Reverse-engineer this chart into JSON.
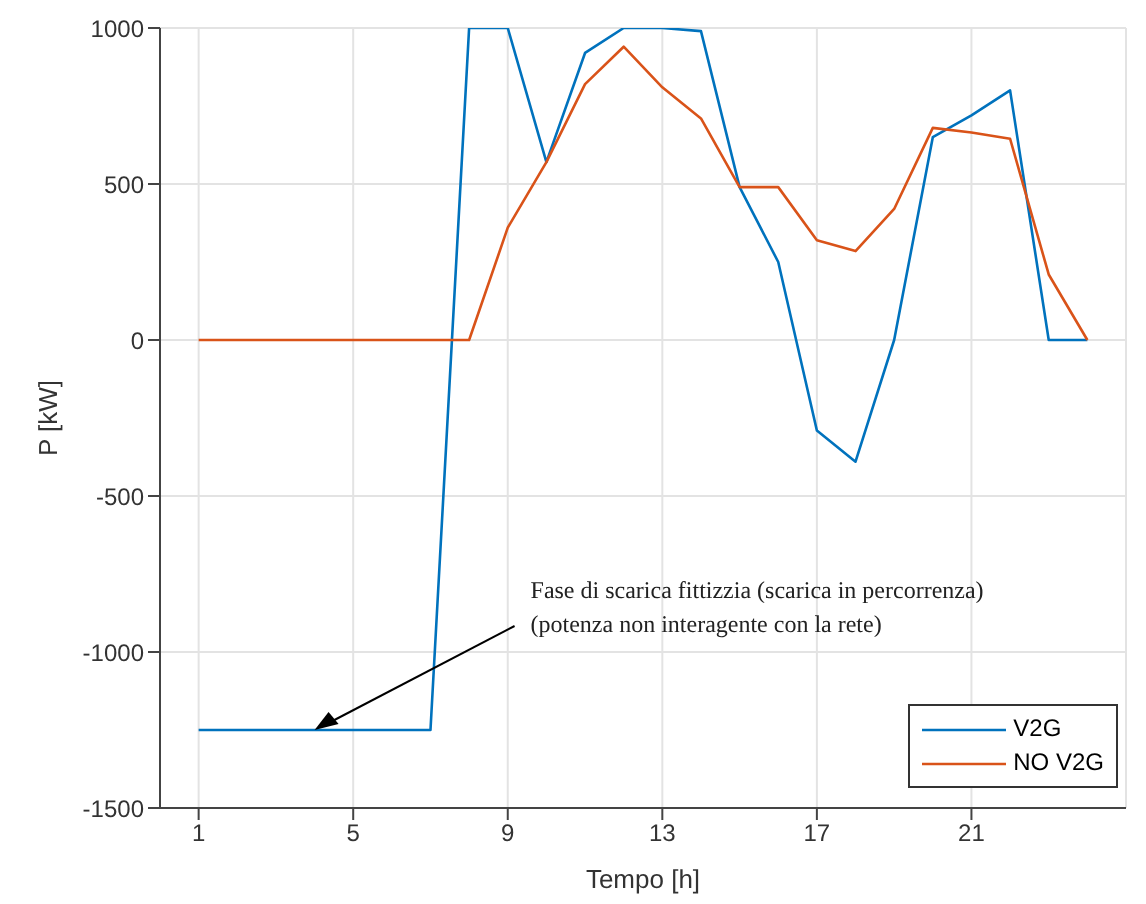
{
  "chart_data": {
    "type": "line",
    "xlabel": "Tempo [h]",
    "ylabel": "P [kW]",
    "x": [
      1,
      2,
      3,
      4,
      5,
      6,
      7,
      8,
      9,
      10,
      11,
      12,
      13,
      14,
      15,
      16,
      17,
      18,
      19,
      20,
      21,
      22,
      23,
      24
    ],
    "series": [
      {
        "name": "V2G",
        "color": "#0072bd",
        "values": [
          -1250,
          -1250,
          -1250,
          -1250,
          -1250,
          -1250,
          -1250,
          1000,
          1000,
          570,
          920,
          1000,
          1000,
          990,
          490,
          250,
          -290,
          -390,
          0,
          650,
          720,
          800,
          0,
          0
        ]
      },
      {
        "name": "NO V2G",
        "color": "#d95319",
        "values": [
          0,
          0,
          0,
          0,
          0,
          0,
          0,
          0,
          360,
          570,
          820,
          940,
          810,
          710,
          490,
          490,
          320,
          285,
          420,
          680,
          665,
          645,
          210,
          0
        ]
      }
    ],
    "xlim": [
      0,
      25
    ],
    "xticks": [
      1,
      5,
      9,
      13,
      17,
      21
    ],
    "ylim": [
      -1500,
      1000
    ],
    "yticks": [
      -1500,
      -1000,
      -500,
      0,
      500,
      1000
    ],
    "grid": true,
    "legend": "bottom right",
    "marker": "none",
    "line_style": "solid",
    "annotations": [
      {
        "text": "Fase di scarica fittizzia (scarica in percorrenza)\n(potenza non interagente con la rete)",
        "x": 4,
        "y": -1250
      }
    ]
  }
}
